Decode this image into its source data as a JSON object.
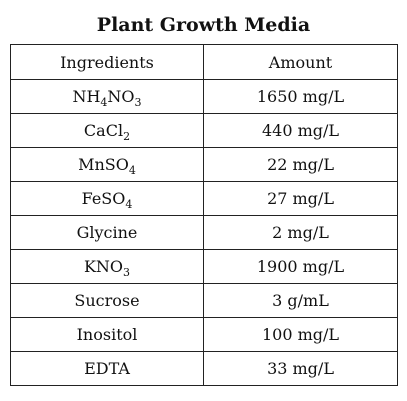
{
  "title": "Plant Growth Media",
  "table": {
    "headers": [
      "Ingredients",
      "Amount"
    ],
    "rows": [
      {
        "ingredient": [
          [
            "NH",
            ""
          ],
          [
            "4",
            "sub"
          ],
          [
            "NO",
            ""
          ],
          [
            "3",
            "sub"
          ]
        ],
        "amount": "1650 mg/L"
      },
      {
        "ingredient": [
          [
            "CaCl",
            ""
          ],
          [
            "2",
            "sub"
          ]
        ],
        "amount": "440 mg/L"
      },
      {
        "ingredient": [
          [
            "MnSO",
            ""
          ],
          [
            "4",
            "sub"
          ]
        ],
        "amount": "22 mg/L"
      },
      {
        "ingredient": [
          [
            "FeSO",
            ""
          ],
          [
            "4",
            "sub"
          ]
        ],
        "amount": "27 mg/L"
      },
      {
        "ingredient": [
          [
            "Glycine",
            ""
          ]
        ],
        "amount": "2 mg/L"
      },
      {
        "ingredient": [
          [
            "KNO",
            ""
          ],
          [
            "3",
            "sub"
          ]
        ],
        "amount": "1900 mg/L"
      },
      {
        "ingredient": [
          [
            "Sucrose",
            ""
          ]
        ],
        "amount": "3 g/mL"
      },
      {
        "ingredient": [
          [
            "Inositol",
            ""
          ]
        ],
        "amount": "100 mg/L"
      },
      {
        "ingredient": [
          [
            "EDTA",
            ""
          ]
        ],
        "amount": "33 mg/L"
      }
    ]
  }
}
